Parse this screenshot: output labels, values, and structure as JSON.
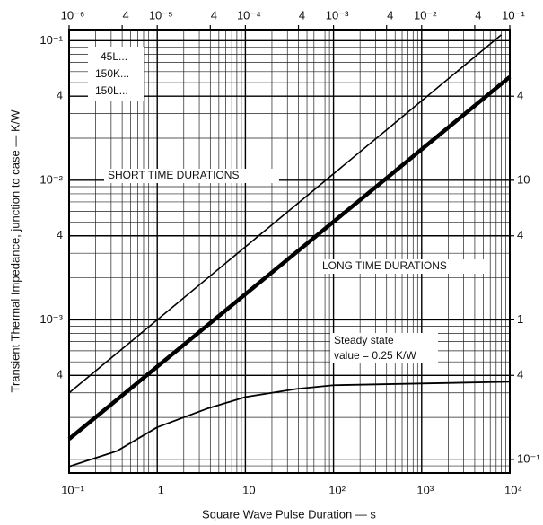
{
  "chart_data": {
    "type": "line",
    "xlabel": "Square Wave Pulse Duration — s",
    "ylabel": "Transient Thermal Impedance, junction to case — K/W",
    "xscale": "log",
    "yscale": "log",
    "grid": true,
    "xlim": [
      0.1,
      10000
    ],
    "xticks": [
      {
        "value": 0.1,
        "label": "10⁻¹"
      },
      1,
      10,
      {
        "value": 100,
        "label": "10²"
      },
      {
        "value": 1000,
        "label": "10³"
      },
      {
        "value": 10000,
        "label": "10⁴"
      }
    ],
    "x2lim": [
      1e-06,
      0.1
    ],
    "x2ticks": [
      {
        "value": 1e-06,
        "label": "10⁻⁶"
      },
      {
        "value": 4e-06,
        "label": "4"
      },
      {
        "value": 1e-05,
        "label": "10⁻⁵"
      },
      {
        "value": 4e-05,
        "label": "4"
      },
      {
        "value": 0.0001,
        "label": "10⁻⁴"
      },
      {
        "value": 0.0004,
        "label": "4"
      },
      {
        "value": 0.001,
        "label": "10⁻³"
      },
      {
        "value": 0.004,
        "label": "4"
      },
      {
        "value": 0.01,
        "label": "10⁻²"
      },
      {
        "value": 0.04,
        "label": "4"
      },
      {
        "value": 0.1,
        "label": "10⁻¹"
      }
    ],
    "ylim": [
      8e-05,
      0.12
    ],
    "yticks": [
      {
        "value": 0.1,
        "label": "10⁻¹"
      },
      {
        "value": 0.04,
        "label": "4"
      },
      {
        "value": 0.01,
        "label": "10⁻²"
      },
      {
        "value": 0.004,
        "label": "4"
      },
      {
        "value": 0.001,
        "label": "10⁻³"
      },
      {
        "value": 0.0004,
        "label": "4"
      }
    ],
    "y2lim": [
      0.08,
      120
    ],
    "y2ticks": [
      {
        "value": 40,
        "label": "4"
      },
      10,
      4,
      1,
      {
        "value": 0.4,
        "label": "4"
      },
      {
        "value": 0.1,
        "label": "10⁻¹"
      }
    ],
    "series": [
      {
        "color": "#000000",
        "x": [
          0.1,
          8000
        ],
        "values": [
          0.0003,
          0.11
        ]
      },
      {
        "color": "#000000",
        "x": [
          0.1,
          10000
        ],
        "values": [
          0.00014,
          0.055
        ]
      },
      {
        "color": "#000000",
        "x": [
          0.1,
          0.35,
          1,
          3.6,
          10,
          38,
          100,
          1000,
          10000
        ],
        "values": [
          8.9e-05,
          0.000115,
          0.00017,
          0.00023,
          0.00028,
          0.00032,
          0.00034,
          0.00035,
          0.00036
        ]
      }
    ],
    "annotations": [
      "45L...",
      "150K...",
      "150L...",
      "SHORT TIME DURATIONS",
      "LONG TIME DURATIONS",
      "Steady state",
      "value = 0.25 K/W"
    ]
  }
}
